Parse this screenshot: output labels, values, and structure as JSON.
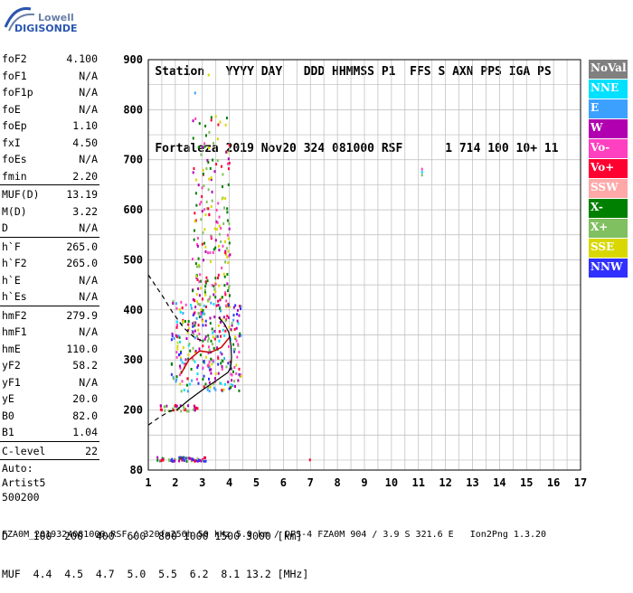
{
  "logo": {
    "line1": "Lowell",
    "line2": "DIGISONDE"
  },
  "header": {
    "line1": [
      "Station",
      "YYYY",
      "DAY",
      "DDD",
      "HHMMSS",
      "P1",
      "FFS",
      "S",
      "AXN",
      "PPS",
      "IGA",
      "PS"
    ],
    "line2": [
      "Fortaleza",
      "2019",
      "Nov20",
      "324",
      "081000",
      "RSF",
      "",
      "1",
      "714",
      "100",
      "10+",
      "11"
    ]
  },
  "params": [
    {
      "label": "foF2",
      "value": "4.100"
    },
    {
      "label": "foF1",
      "value": "N/A"
    },
    {
      "label": "foF1p",
      "value": "N/A"
    },
    {
      "label": "foE",
      "value": "N/A"
    },
    {
      "label": "foEp",
      "value": "1.10"
    },
    {
      "label": "fxI",
      "value": "4.50"
    },
    {
      "label": "foEs",
      "value": "N/A"
    },
    {
      "label": "fmin",
      "value": "2.20"
    },
    {
      "sep": true
    },
    {
      "label": "MUF(D)",
      "value": "13.19"
    },
    {
      "label": "M(D)",
      "value": "3.22"
    },
    {
      "label": "D",
      "value": "N/A"
    },
    {
      "sep": true
    },
    {
      "label": "h`F",
      "value": "265.0"
    },
    {
      "label": "h`F2",
      "value": "265.0"
    },
    {
      "label": "h`E",
      "value": "N/A"
    },
    {
      "label": "h`Es",
      "value": "N/A"
    },
    {
      "sep": true
    },
    {
      "label": "hmF2",
      "value": "279.9"
    },
    {
      "label": "hmF1",
      "value": "N/A"
    },
    {
      "label": "hmE",
      "value": "110.0"
    },
    {
      "label": "yF2",
      "value": "58.2"
    },
    {
      "label": "yF1",
      "value": "N/A"
    },
    {
      "label": "yE",
      "value": "20.0"
    },
    {
      "label": "B0",
      "value": "82.0"
    },
    {
      "label": "B1",
      "value": "1.04"
    },
    {
      "sep": true
    },
    {
      "label": "C-level",
      "value": "22"
    },
    {
      "sep": true
    }
  ],
  "auto": [
    "Auto:",
    "Artist5",
    "500200"
  ],
  "legend": [
    {
      "label": "NoVal",
      "color": "#808080"
    },
    {
      "label": "NNE",
      "color": "#00e0ff"
    },
    {
      "label": "E",
      "color": "#3ca0ff"
    },
    {
      "label": "W",
      "color": "#b000b0"
    },
    {
      "label": "Vo-",
      "color": "#ff40c0"
    },
    {
      "label": "Vo+",
      "color": "#ff0030"
    },
    {
      "label": "SSW",
      "color": "#ffa8a8"
    },
    {
      "label": "X-",
      "color": "#008000"
    },
    {
      "label": "X+",
      "color": "#80c060"
    },
    {
      "label": "SSE",
      "color": "#d8d800"
    },
    {
      "label": "NNW",
      "color": "#3030ff"
    }
  ],
  "bottom": {
    "row1_label": "D",
    "row1_values": "100  200  400  600  800 1000 1500 3000 [km]",
    "row2_label": "MUF",
    "row2_values": "4.4  4.5  4.7  5.0  5.5  6.2  8.1 13.2 [MHz]"
  },
  "footer": "FZA0M_2019324081000.RSF / 320fx256h 50 kHz 5.0 km / DPS-4 FZA0M 904 / 3.9 S 321.6 E   Ion2Png 1.3.20",
  "chart_data": {
    "type": "scatter",
    "xlim": [
      1,
      17
    ],
    "ylim": [
      80,
      900
    ],
    "x_ticks": [
      1,
      2,
      3,
      4,
      5,
      6,
      7,
      8,
      9,
      10,
      11,
      12,
      13,
      14,
      15,
      16,
      17
    ],
    "y_ticks": [
      80,
      200,
      300,
      400,
      500,
      600,
      700,
      800,
      900
    ],
    "grid": true,
    "scatter_clusters": [
      {
        "name": "echoes-main",
        "x_range": [
          1.8,
          4.4
        ],
        "y_range": [
          240,
          420
        ],
        "count": 320,
        "colors": [
          "#ff0030",
          "#b000b0",
          "#3ca0ff",
          "#ff40c0",
          "#80c060",
          "#d8d800",
          "#008000",
          "#00e0ff",
          "#3030ff"
        ]
      },
      {
        "name": "echoes-upper",
        "x_range": [
          2.6,
          4.0
        ],
        "y_range": [
          420,
          790
        ],
        "count": 200,
        "colors": [
          "#b000b0",
          "#ff0030",
          "#80c060",
          "#d8d800",
          "#ff40c0",
          "#008000"
        ]
      },
      {
        "name": "echoes-low-band",
        "x_range": [
          1.4,
          2.8
        ],
        "y_range": [
          200,
          212
        ],
        "count": 40,
        "colors": [
          "#ff0030",
          "#80c060",
          "#b000b0"
        ]
      },
      {
        "name": "echoes-base",
        "x_range": [
          1.3,
          3.1
        ],
        "y_range": [
          100,
          108
        ],
        "count": 60,
        "colors": [
          "#008000",
          "#3030ff",
          "#ff0030",
          "#80c060",
          "#b000b0"
        ]
      }
    ],
    "isolated_points": [
      {
        "x": 11.1,
        "y": 684,
        "color": "#ff40c0"
      },
      {
        "x": 11.1,
        "y": 678,
        "color": "#00e0ff"
      },
      {
        "x": 11.1,
        "y": 672,
        "color": "#80c060"
      },
      {
        "x": 6.95,
        "y": 103,
        "color": "#ff0030"
      },
      {
        "x": 2.7,
        "y": 836,
        "color": "#3ca0ff"
      },
      {
        "x": 3.2,
        "y": 872,
        "color": "#d8d800"
      }
    ],
    "profile_solid": [
      [
        2.05,
        200
      ],
      [
        2.5,
        220
      ],
      [
        3.0,
        240
      ],
      [
        3.5,
        258
      ],
      [
        3.95,
        275
      ],
      [
        4.05,
        285
      ],
      [
        4.08,
        305
      ],
      [
        4.06,
        330
      ],
      [
        3.98,
        355
      ],
      [
        3.82,
        372
      ],
      [
        3.6,
        385
      ]
    ],
    "profile_dashed": [
      [
        1.0,
        170
      ],
      [
        1.4,
        185
      ],
      [
        1.8,
        198
      ],
      [
        2.05,
        200
      ]
    ],
    "profile_dashed_upper": [
      [
        1.0,
        470
      ],
      [
        1.5,
        430
      ],
      [
        1.9,
        395
      ],
      [
        2.3,
        365
      ],
      [
        2.7,
        345
      ],
      [
        3.0,
        338
      ]
    ],
    "trace_red": [
      [
        2.2,
        272
      ],
      [
        2.5,
        300
      ],
      [
        2.9,
        318
      ],
      [
        3.3,
        315
      ],
      [
        3.7,
        325
      ],
      [
        4.0,
        345
      ]
    ]
  }
}
